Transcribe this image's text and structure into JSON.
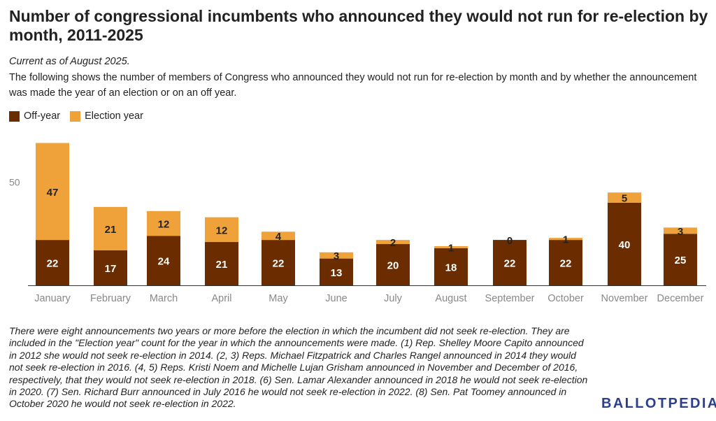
{
  "title": "Number of congressional incumbents who announced they would not run for re-election by month, 2011-2025",
  "as_of": "Current as of August 2025.",
  "description": "The following shows the number of members of Congress who announced they would not run for re-election by month and by whether the announcement was made the year of an election or on an off year.",
  "colors": {
    "off_year": "#6b2c00",
    "election_year": "#f0a23a",
    "axis": "#888888",
    "grid_label": "#888888"
  },
  "chart_data": {
    "type": "bar",
    "stacked": true,
    "categories": [
      "January",
      "February",
      "March",
      "April",
      "May",
      "June",
      "July",
      "August",
      "September",
      "October",
      "November",
      "December"
    ],
    "series": [
      {
        "name": "Off-year",
        "values": [
          22,
          17,
          24,
          21,
          22,
          13,
          20,
          18,
          22,
          22,
          40,
          25
        ]
      },
      {
        "name": "Election year",
        "values": [
          47,
          21,
          12,
          12,
          4,
          3,
          2,
          1,
          0,
          1,
          5,
          3
        ]
      }
    ],
    "yticks": [
      50
    ],
    "ylim": [
      0,
      70
    ],
    "legend_position": "top-left",
    "grid": false
  },
  "footnote": "There were eight announcements two years or more before the election in which the incumbent did not seek re-election. They are included in the \"Election year\" count for the year in which the announcements were made. (1) Rep. Shelley Moore Capito announced in 2012 she would not seek re-election in 2014. (2, 3) Reps. Michael Fitzpatrick and Charles Rangel announced in 2014 they would not seek re-election in 2016. (4, 5) Reps. Kristi Noem and Michelle Lujan Grisham announced in November and December of 2016, respectively, that they would not seek re-election in 2018. (6) Sen. Lamar Alexander announced in 2018 he would not seek re-election in 2020. (7) Sen. Richard Burr announced in July 2016 he would not seek re-election in 2022. (8) Sen. Pat Toomey announced in October 2020 he would not seek re-election in 2022.",
  "logo_text": "BALLOTPEDIA"
}
